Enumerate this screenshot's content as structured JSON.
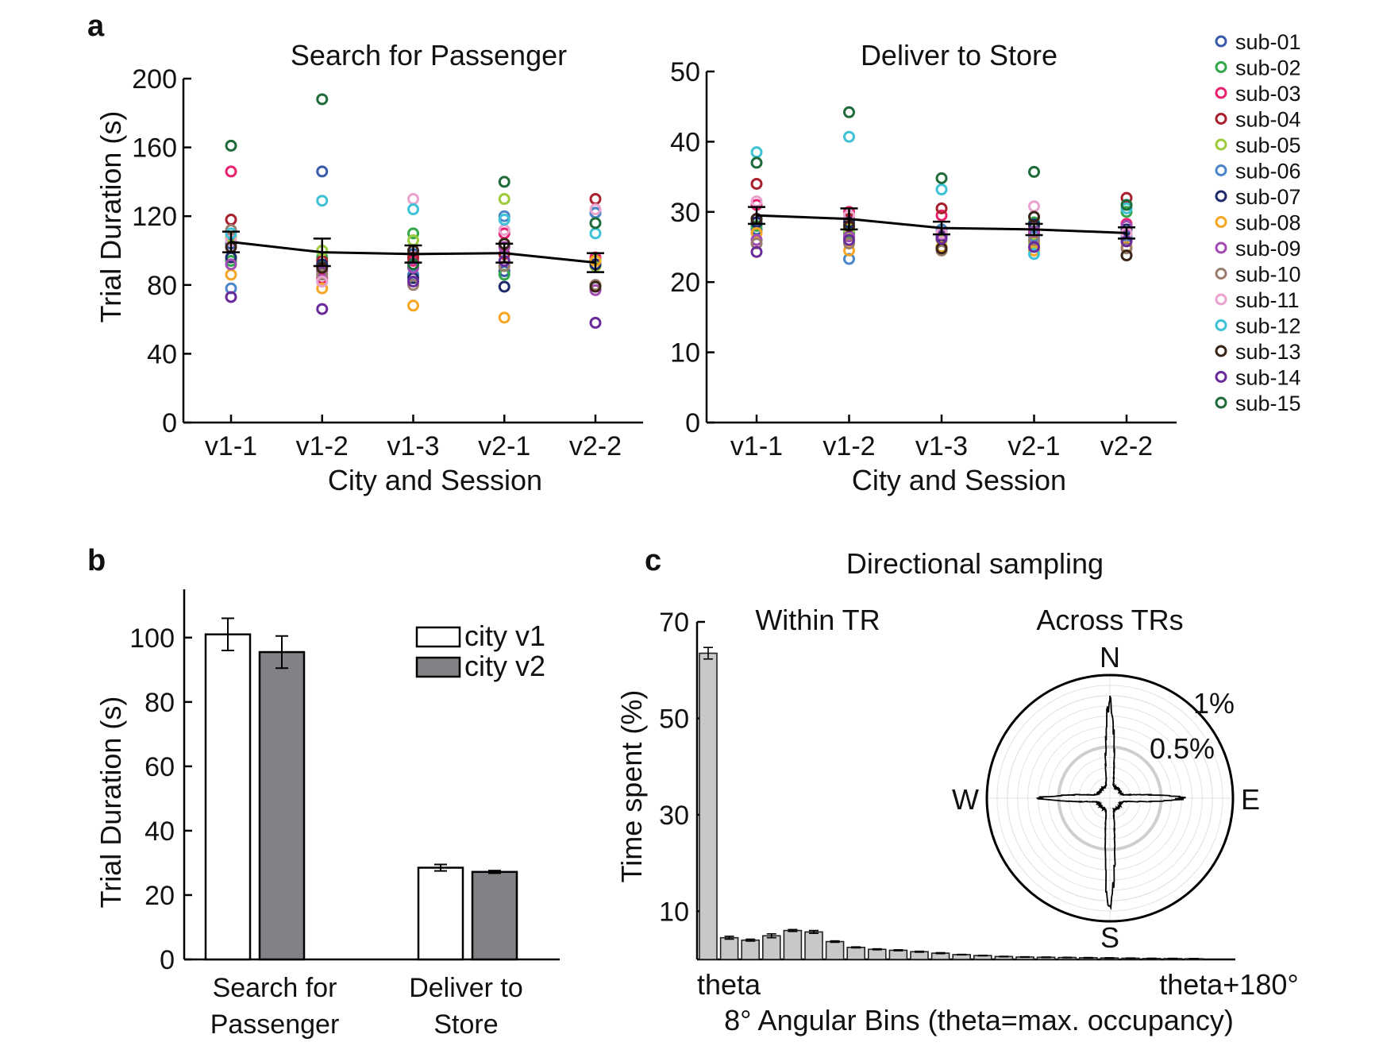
{
  "panels": {
    "a": {
      "letter": "a",
      "ylabel": "Trial Duration (s)",
      "xlabel": "City and Session",
      "legend": [
        {
          "name": "sub-01",
          "color": "#3a5ba8"
        },
        {
          "name": "sub-02",
          "color": "#33a84a"
        },
        {
          "name": "sub-03",
          "color": "#e8226e"
        },
        {
          "name": "sub-04",
          "color": "#a8202d"
        },
        {
          "name": "sub-05",
          "color": "#9ccb3c"
        },
        {
          "name": "sub-06",
          "color": "#4a86c8"
        },
        {
          "name": "sub-07",
          "color": "#1f2a6b"
        },
        {
          "name": "sub-08",
          "color": "#f5a623"
        },
        {
          "name": "sub-09",
          "color": "#a44ab5"
        },
        {
          "name": "sub-10",
          "color": "#9a7d6e"
        },
        {
          "name": "sub-11",
          "color": "#eaa2cf"
        },
        {
          "name": "sub-12",
          "color": "#3fc2d6"
        },
        {
          "name": "sub-13",
          "color": "#3a2418"
        },
        {
          "name": "sub-14",
          "color": "#6a2a9a"
        },
        {
          "name": "sub-15",
          "color": "#1f6b3a"
        }
      ]
    },
    "b": {
      "letter": "b"
    },
    "c": {
      "letter": "c",
      "title": "Directional sampling"
    }
  },
  "chart_data": [
    {
      "id": "a-left",
      "type": "scatter",
      "title": "Search for Passenger",
      "xlabel": "City and Session",
      "ylabel": "Trial Duration (s)",
      "categories": [
        "v1-1",
        "v1-2",
        "v1-3",
        "v2-1",
        "v2-2"
      ],
      "ylim": [
        0,
        200
      ],
      "yticks": [
        0,
        40,
        80,
        120,
        160,
        200
      ],
      "series": [
        {
          "name": "sub-01",
          "values": [
            104,
            146,
            98,
            88,
            122
          ]
        },
        {
          "name": "sub-02",
          "values": [
            94,
            96,
            110,
            86,
            95
          ]
        },
        {
          "name": "sub-03",
          "values": [
            146,
            84,
            94,
            110,
            96
          ]
        },
        {
          "name": "sub-04",
          "values": [
            118,
            94,
            96,
            98,
            130
          ]
        },
        {
          "name": "sub-05",
          "values": [
            108,
            100,
            106,
            130,
            91
          ]
        },
        {
          "name": "sub-06",
          "values": [
            78,
            82,
            86,
            120,
            122
          ]
        },
        {
          "name": "sub-07",
          "values": [
            96,
            92,
            84,
            79,
            92
          ]
        },
        {
          "name": "sub-08",
          "values": [
            86,
            78,
            68,
            61,
            94
          ]
        },
        {
          "name": "sub-09",
          "values": [
            92,
            88,
            90,
            102,
            77
          ]
        },
        {
          "name": "sub-10",
          "values": [
            112,
            86,
            80,
            91,
            80
          ]
        },
        {
          "name": "sub-11",
          "values": [
            106,
            82,
            130,
            112,
            124
          ]
        },
        {
          "name": "sub-12",
          "values": [
            110,
            129,
            124,
            118,
            110
          ]
        },
        {
          "name": "sub-13",
          "values": [
            102,
            90,
            100,
            104,
            79
          ]
        },
        {
          "name": "sub-14",
          "values": [
            73,
            66,
            82,
            94,
            58
          ]
        },
        {
          "name": "sub-15",
          "values": [
            161,
            188,
            92,
            140,
            116
          ]
        }
      ],
      "mean": [
        105,
        99,
        98,
        98.5,
        93
      ],
      "error": [
        6,
        8,
        5,
        5.5,
        5.5
      ]
    },
    {
      "id": "a-right",
      "type": "scatter",
      "title": "Deliver to Store",
      "xlabel": "City and Session",
      "categories": [
        "v1-1",
        "v1-2",
        "v1-3",
        "v2-1",
        "v2-2"
      ],
      "ylim": [
        0,
        50
      ],
      "yticks": [
        0,
        10,
        20,
        30,
        40,
        50
      ],
      "series": [
        {
          "name": "sub-01",
          "values": [
            27.5,
            28,
            27,
            26.8,
            26
          ]
        },
        {
          "name": "sub-02",
          "values": [
            28,
            27,
            25,
            28.5,
            30
          ]
        },
        {
          "name": "sub-03",
          "values": [
            31,
            30,
            29.5,
            27,
            28.3
          ]
        },
        {
          "name": "sub-04",
          "values": [
            34,
            29,
            30.5,
            28,
            32
          ]
        },
        {
          "name": "sub-05",
          "values": [
            26,
            27.5,
            26,
            25.5,
            27
          ]
        },
        {
          "name": "sub-06",
          "values": [
            29,
            23.3,
            27.5,
            26.5,
            26.5
          ]
        },
        {
          "name": "sub-07",
          "values": [
            28.5,
            28.5,
            26.5,
            28.2,
            27.5
          ]
        },
        {
          "name": "sub-08",
          "values": [
            27,
            24.5,
            25,
            24.5,
            25
          ]
        },
        {
          "name": "sub-09",
          "values": [
            26,
            26.5,
            26.8,
            27.2,
            28
          ]
        },
        {
          "name": "sub-10",
          "values": [
            25.5,
            25.5,
            24.5,
            26,
            24.8
          ]
        },
        {
          "name": "sub-11",
          "values": [
            31.5,
            29.5,
            27,
            30.8,
            27
          ]
        },
        {
          "name": "sub-12",
          "values": [
            38.5,
            40.7,
            33.2,
            24,
            30.5
          ]
        },
        {
          "name": "sub-13",
          "values": [
            29,
            28,
            24.8,
            29.3,
            23.8
          ]
        },
        {
          "name": "sub-14",
          "values": [
            24.3,
            26,
            26.2,
            25,
            25.8
          ]
        },
        {
          "name": "sub-15",
          "values": [
            37,
            44.2,
            34.8,
            35.7,
            31
          ]
        }
      ],
      "mean": [
        29.5,
        29,
        27.7,
        27.5,
        27
      ],
      "error": [
        1.2,
        1.5,
        0.9,
        0.8,
        0.8
      ]
    },
    {
      "id": "b",
      "type": "bar",
      "ylabel": "Trial Duration (s)",
      "categories": [
        [
          "Search for",
          "Passenger"
        ],
        [
          "Deliver to",
          "Store"
        ]
      ],
      "ylim": [
        0,
        115
      ],
      "yticks": [
        0,
        20,
        40,
        60,
        80,
        100
      ],
      "series": [
        {
          "name": "city v1",
          "color": "#ffffff",
          "values": [
            101,
            28.5
          ],
          "error": [
            5,
            1
          ]
        },
        {
          "name": "city v2",
          "color": "#808285",
          "values": [
            95.5,
            27.2
          ],
          "error": [
            5,
            0.4
          ]
        }
      ],
      "legend_position": "top-right"
    },
    {
      "id": "c-bars",
      "type": "bar",
      "title": "Within TR",
      "ylabel": "Time spent (%)",
      "xlabel": "8° Angular Bins (theta=max. occupancy)",
      "x_start_label": "theta",
      "x_end_label": "theta+180°",
      "ylim": [
        0,
        70
      ],
      "yticks": [
        10,
        30,
        50,
        70
      ],
      "bar_color": "#c8c8c8",
      "values": [
        63.5,
        4.5,
        4,
        4.9,
        6,
        5.7,
        3.7,
        2.5,
        2.1,
        1.9,
        1.6,
        1.3,
        1.0,
        0.8,
        0.6,
        0.5,
        0.45,
        0.4,
        0.35,
        0.3,
        0.25,
        0.2,
        0.18,
        0.15
      ],
      "error": [
        1.2,
        0.3,
        0.2,
        0.4,
        0.2,
        0.3,
        0.15,
        0.1,
        0.1,
        0.1,
        0.1,
        0.1,
        0.05,
        0.05,
        0.05,
        0.05,
        0.05,
        0.05,
        0.05,
        0.05,
        0.05,
        0.05,
        0.05,
        0.05
      ]
    },
    {
      "id": "c-polar",
      "type": "polar",
      "title": "Across TRs",
      "directions": {
        "n": "N",
        "s": "S",
        "e": "E",
        "w": "W"
      },
      "rmax": 1.2,
      "ring_labels": [
        {
          "value": 1.0,
          "label": "1%"
        },
        {
          "value": 0.5,
          "label": "0.5%"
        }
      ],
      "ring_step": 0.1,
      "peaks": {
        "N": 1.0,
        "E": 0.72,
        "S": 1.15,
        "W": 0.73
      },
      "baseline": 0.12
    }
  ]
}
